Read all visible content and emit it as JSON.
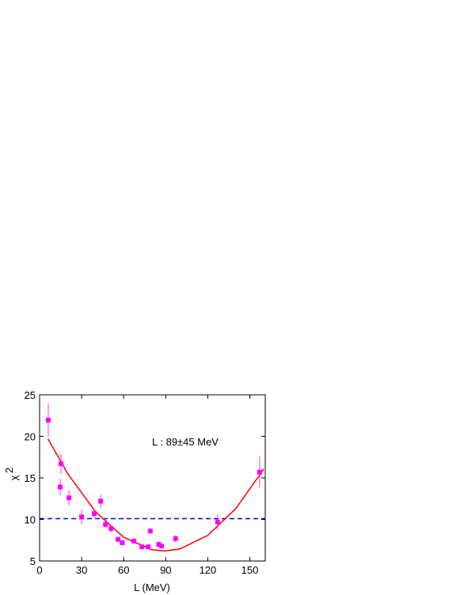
{
  "chart_data": {
    "type": "scatter",
    "x_label": "L (MeV)",
    "y_label": "χ",
    "y_label_sup": "2",
    "annotation": "L : 89±45 MeV",
    "xlim": [
      0,
      161
    ],
    "xticks": [
      0,
      30,
      60,
      90,
      120,
      150
    ],
    "ylim": [
      5,
      25
    ],
    "yticks": [
      5,
      10,
      15,
      20,
      25
    ],
    "points": {
      "color": "#ff00ff",
      "x": [
        6.2,
        15.3,
        14.7,
        21,
        30,
        39,
        43.6,
        47,
        51,
        56,
        59,
        67.3,
        73,
        77.5,
        79,
        85,
        87,
        97,
        127,
        157
      ],
      "values": [
        21.95,
        16.7,
        13.9,
        12.6,
        10.3,
        10.7,
        12.2,
        9.4,
        8.9,
        7.6,
        7.2,
        7.4,
        6.7,
        6.7,
        8.6,
        7.0,
        6.8,
        7.7,
        9.7,
        15.7
      ],
      "errors": [
        2.0,
        1.2,
        1.0,
        0.9,
        0.9,
        0.5,
        0.8,
        0.4,
        0.4,
        0.15,
        0.15,
        0.3,
        0.15,
        0.15,
        0.15,
        0.15,
        0.15,
        0.4,
        0.9,
        1.9
      ]
    },
    "fit": {
      "color": "#ff0000",
      "x": [
        6,
        20,
        40,
        60,
        80,
        89,
        100,
        120,
        140,
        160
      ],
      "values": [
        19.7,
        15.53,
        10.91,
        7.85,
        6.36,
        6.2,
        6.44,
        8.08,
        11.3,
        16.08
      ]
    },
    "threshold": {
      "value": 10.1,
      "color": "#0000ff"
    }
  }
}
